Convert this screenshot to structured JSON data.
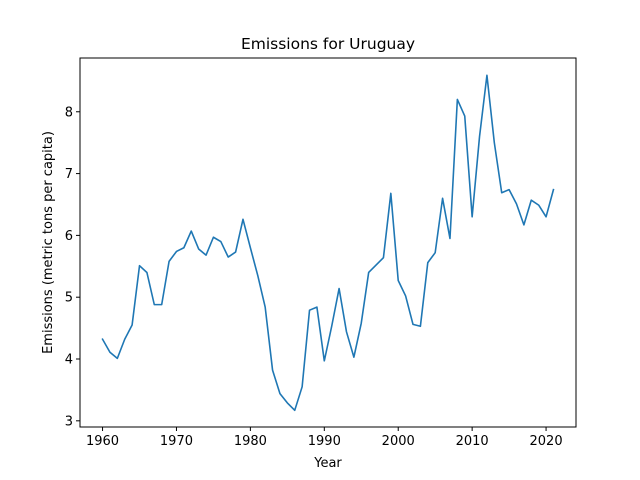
{
  "chart_data": {
    "type": "line",
    "title": "Emissions for Uruguay",
    "xlabel": "Year",
    "ylabel": "Emissions (metric tons per capita)",
    "xlim": [
      1956.95,
      2024.05
    ],
    "ylim": [
      2.9,
      8.87
    ],
    "xticks": [
      1960,
      1970,
      1980,
      1990,
      2000,
      2010,
      2020
    ],
    "yticks": [
      3,
      4,
      5,
      6,
      7,
      8
    ],
    "grid": false,
    "legend": "none",
    "series": [
      {
        "color": "#1f77b4",
        "x": [
          1960,
          1961,
          1962,
          1963,
          1964,
          1965,
          1966,
          1967,
          1968,
          1969,
          1970,
          1971,
          1972,
          1973,
          1974,
          1975,
          1976,
          1977,
          1978,
          1979,
          1980,
          1981,
          1982,
          1983,
          1984,
          1985,
          1986,
          1987,
          1988,
          1989,
          1990,
          1991,
          1992,
          1993,
          1994,
          1995,
          1996,
          1997,
          1998,
          1999,
          2000,
          2001,
          2002,
          2003,
          2004,
          2005,
          2006,
          2007,
          2008,
          2009,
          2010,
          2011,
          2012,
          2013,
          2014,
          2015,
          2016,
          2017,
          2018,
          2019,
          2020,
          2021
        ],
        "y": [
          4.32,
          4.11,
          4.01,
          4.32,
          4.55,
          5.51,
          5.4,
          4.88,
          4.88,
          5.58,
          5.74,
          5.8,
          6.07,
          5.78,
          5.68,
          5.97,
          5.9,
          5.65,
          5.73,
          6.26,
          5.8,
          5.35,
          4.84,
          3.82,
          3.44,
          3.29,
          3.17,
          3.55,
          4.79,
          4.84,
          3.97,
          4.53,
          5.14,
          4.44,
          4.03,
          4.58,
          5.4,
          5.52,
          5.64,
          6.68,
          5.27,
          5.02,
          4.56,
          4.53,
          5.56,
          5.72,
          6.6,
          5.95,
          8.2,
          7.93,
          6.3,
          7.6,
          8.59,
          7.5,
          6.69,
          6.74,
          6.51,
          6.17,
          6.57,
          6.49,
          6.3,
          6.74
        ]
      }
    ]
  }
}
